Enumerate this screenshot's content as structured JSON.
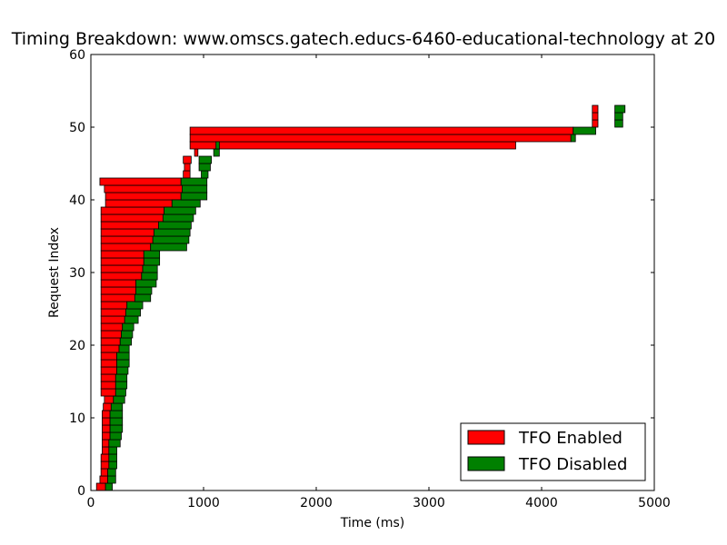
{
  "chart_data": {
    "type": "bar",
    "orientation": "horizontal-floating",
    "title": "Timing Breakdown: www.omscs.gatech.educs-6460-educational-technology at 20",
    "xlabel": "Time (ms)",
    "ylabel": "Request Index",
    "xlim": [
      0,
      5000
    ],
    "ylim": [
      0,
      60
    ],
    "xticks": [
      "0",
      "1000",
      "2000",
      "3000",
      "4000",
      "5000"
    ],
    "yticks": [
      "0",
      "10",
      "20",
      "30",
      "40",
      "50",
      "60"
    ],
    "legend_position": "lower-right",
    "grid": false,
    "series": [
      {
        "name": "TFO Enabled",
        "color": "#ff0000",
        "bars": [
          {
            "start": 50,
            "end": 130
          },
          {
            "start": 80,
            "end": 150
          },
          {
            "start": 90,
            "end": 150
          },
          {
            "start": 90,
            "end": 160
          },
          {
            "start": 90,
            "end": 160
          },
          {
            "start": 100,
            "end": 160
          },
          {
            "start": 100,
            "end": 160
          },
          {
            "start": 100,
            "end": 170
          },
          {
            "start": 100,
            "end": 170
          },
          {
            "start": 100,
            "end": 170
          },
          {
            "start": 100,
            "end": 170
          },
          {
            "start": 110,
            "end": 180
          },
          {
            "start": 120,
            "end": 200
          },
          {
            "start": 90,
            "end": 220
          },
          {
            "start": 90,
            "end": 220
          },
          {
            "start": 90,
            "end": 220
          },
          {
            "start": 90,
            "end": 230
          },
          {
            "start": 90,
            "end": 230
          },
          {
            "start": 90,
            "end": 230
          },
          {
            "start": 90,
            "end": 250
          },
          {
            "start": 90,
            "end": 260
          },
          {
            "start": 90,
            "end": 270
          },
          {
            "start": 90,
            "end": 280
          },
          {
            "start": 90,
            "end": 300
          },
          {
            "start": 90,
            "end": 310
          },
          {
            "start": 90,
            "end": 320
          },
          {
            "start": 90,
            "end": 390
          },
          {
            "start": 90,
            "end": 400
          },
          {
            "start": 90,
            "end": 400
          },
          {
            "start": 90,
            "end": 450
          },
          {
            "start": 90,
            "end": 460
          },
          {
            "start": 90,
            "end": 470
          },
          {
            "start": 90,
            "end": 470
          },
          {
            "start": 90,
            "end": 530
          },
          {
            "start": 90,
            "end": 550
          },
          {
            "start": 90,
            "end": 560
          },
          {
            "start": 90,
            "end": 600
          },
          {
            "start": 90,
            "end": 640
          },
          {
            "start": 90,
            "end": 650
          },
          {
            "start": 130,
            "end": 720
          },
          {
            "start": 130,
            "end": 800
          },
          {
            "start": 120,
            "end": 810
          },
          {
            "start": 80,
            "end": 800
          },
          {
            "start": 820,
            "end": 880
          },
          {
            "start": 830,
            "end": 880
          },
          {
            "start": 820,
            "end": 890
          },
          {
            "start": 920,
            "end": 950
          },
          {
            "start": 880,
            "end": 3770
          },
          {
            "start": 880,
            "end": 4260
          },
          {
            "start": 880,
            "end": 4280
          },
          {
            "start": 4450,
            "end": 4500
          },
          {
            "start": 4450,
            "end": 4500
          },
          {
            "start": 4450,
            "end": 4500
          }
        ]
      },
      {
        "name": "TFO Disabled",
        "color": "#008000",
        "bars": [
          {
            "start": 130,
            "end": 190
          },
          {
            "start": 150,
            "end": 220
          },
          {
            "start": 150,
            "end": 220
          },
          {
            "start": 160,
            "end": 230
          },
          {
            "start": 160,
            "end": 230
          },
          {
            "start": 160,
            "end": 230
          },
          {
            "start": 160,
            "end": 260
          },
          {
            "start": 170,
            "end": 270
          },
          {
            "start": 170,
            "end": 280
          },
          {
            "start": 170,
            "end": 280
          },
          {
            "start": 170,
            "end": 280
          },
          {
            "start": 180,
            "end": 280
          },
          {
            "start": 200,
            "end": 300
          },
          {
            "start": 220,
            "end": 310
          },
          {
            "start": 220,
            "end": 320
          },
          {
            "start": 220,
            "end": 320
          },
          {
            "start": 230,
            "end": 330
          },
          {
            "start": 230,
            "end": 340
          },
          {
            "start": 230,
            "end": 340
          },
          {
            "start": 250,
            "end": 340
          },
          {
            "start": 260,
            "end": 360
          },
          {
            "start": 270,
            "end": 370
          },
          {
            "start": 280,
            "end": 380
          },
          {
            "start": 300,
            "end": 420
          },
          {
            "start": 310,
            "end": 440
          },
          {
            "start": 320,
            "end": 460
          },
          {
            "start": 390,
            "end": 530
          },
          {
            "start": 400,
            "end": 540
          },
          {
            "start": 400,
            "end": 580
          },
          {
            "start": 450,
            "end": 590
          },
          {
            "start": 460,
            "end": 590
          },
          {
            "start": 470,
            "end": 610
          },
          {
            "start": 470,
            "end": 610
          },
          {
            "start": 530,
            "end": 850
          },
          {
            "start": 550,
            "end": 870
          },
          {
            "start": 560,
            "end": 880
          },
          {
            "start": 600,
            "end": 890
          },
          {
            "start": 640,
            "end": 910
          },
          {
            "start": 650,
            "end": 930
          },
          {
            "start": 720,
            "end": 970
          },
          {
            "start": 800,
            "end": 1030
          },
          {
            "start": 810,
            "end": 1030
          },
          {
            "start": 800,
            "end": 1030
          },
          {
            "start": 980,
            "end": 1040
          },
          {
            "start": 960,
            "end": 1060
          },
          {
            "start": 960,
            "end": 1070
          },
          {
            "start": 1090,
            "end": 1140
          },
          {
            "start": 1110,
            "end": 1140
          },
          {
            "start": 4260,
            "end": 4300
          },
          {
            "start": 4280,
            "end": 4480
          },
          {
            "start": 4650,
            "end": 4720
          },
          {
            "start": 4650,
            "end": 4720
          },
          {
            "start": 4650,
            "end": 4740
          }
        ]
      }
    ]
  }
}
